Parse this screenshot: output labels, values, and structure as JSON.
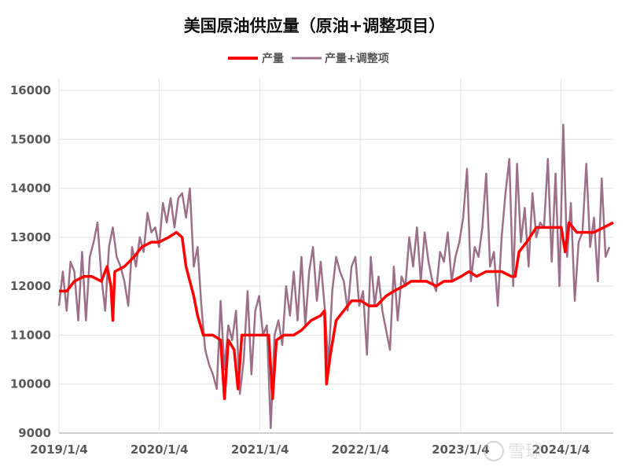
{
  "chart_data": {
    "type": "line",
    "title": "美国原油供应量（原油+调整项目）",
    "xlabel": "",
    "ylabel": "",
    "ylim": [
      9000,
      16000
    ],
    "yticks": [
      9000,
      10000,
      11000,
      12000,
      13000,
      14000,
      15000,
      16000
    ],
    "xticks": [
      "2019/1/4",
      "2020/1/4",
      "2021/1/4",
      "2022/1/4",
      "2023/1/4",
      "2024/1/4"
    ],
    "xrange": [
      "2019-01-04",
      "2024-07-12"
    ],
    "grid": true,
    "legend_position": "top",
    "series": [
      {
        "name": "产量",
        "color": "#ff0000",
        "points": [
          [
            "2019-01-04",
            11900
          ],
          [
            "2019-02-01",
            11900
          ],
          [
            "2019-03-01",
            12100
          ],
          [
            "2019-04-05",
            12200
          ],
          [
            "2019-05-03",
            12200
          ],
          [
            "2019-06-07",
            12100
          ],
          [
            "2019-06-28",
            12400
          ],
          [
            "2019-07-12",
            12000
          ],
          [
            "2019-07-19",
            11300
          ],
          [
            "2019-07-26",
            12300
          ],
          [
            "2019-08-30",
            12400
          ],
          [
            "2019-10-04",
            12600
          ],
          [
            "2019-11-01",
            12800
          ],
          [
            "2019-12-06",
            12900
          ],
          [
            "2020-01-03",
            12900
          ],
          [
            "2020-02-07",
            13000
          ],
          [
            "2020-03-06",
            13100
          ],
          [
            "2020-03-27",
            13000
          ],
          [
            "2020-04-10",
            12400
          ],
          [
            "2020-05-08",
            11800
          ],
          [
            "2020-05-22",
            11400
          ],
          [
            "2020-06-12",
            11000
          ],
          [
            "2020-07-17",
            11000
          ],
          [
            "2020-08-14",
            10900
          ],
          [
            "2020-08-28",
            9700
          ],
          [
            "2020-09-11",
            10900
          ],
          [
            "2020-10-02",
            10700
          ],
          [
            "2020-10-16",
            9900
          ],
          [
            "2020-10-30",
            11000
          ],
          [
            "2020-12-04",
            11000
          ],
          [
            "2021-01-08",
            11000
          ],
          [
            "2021-02-05",
            11000
          ],
          [
            "2021-02-19",
            9700
          ],
          [
            "2021-03-05",
            10900
          ],
          [
            "2021-04-02",
            11000
          ],
          [
            "2021-05-07",
            11000
          ],
          [
            "2021-06-04",
            11100
          ],
          [
            "2021-07-09",
            11300
          ],
          [
            "2021-08-13",
            11400
          ],
          [
            "2021-08-27",
            11500
          ],
          [
            "2021-09-03",
            10000
          ],
          [
            "2021-09-17",
            10600
          ],
          [
            "2021-10-08",
            11300
          ],
          [
            "2021-11-05",
            11500
          ],
          [
            "2021-12-03",
            11700
          ],
          [
            "2022-01-07",
            11700
          ],
          [
            "2022-02-04",
            11600
          ],
          [
            "2022-03-04",
            11600
          ],
          [
            "2022-04-08",
            11800
          ],
          [
            "2022-05-06",
            11900
          ],
          [
            "2022-06-10",
            12000
          ],
          [
            "2022-07-08",
            12100
          ],
          [
            "2022-08-05",
            12100
          ],
          [
            "2022-09-02",
            12100
          ],
          [
            "2022-10-07",
            12000
          ],
          [
            "2022-11-04",
            12100
          ],
          [
            "2022-12-02",
            12100
          ],
          [
            "2023-01-06",
            12200
          ],
          [
            "2023-02-03",
            12300
          ],
          [
            "2023-03-03",
            12200
          ],
          [
            "2023-04-07",
            12300
          ],
          [
            "2023-05-05",
            12300
          ],
          [
            "2023-06-02",
            12300
          ],
          [
            "2023-07-07",
            12200
          ],
          [
            "2023-07-21",
            12200
          ],
          [
            "2023-08-04",
            12700
          ],
          [
            "2023-09-01",
            12900
          ],
          [
            "2023-10-06",
            13200
          ],
          [
            "2023-11-03",
            13200
          ],
          [
            "2023-12-01",
            13200
          ],
          [
            "2024-01-05",
            13200
          ],
          [
            "2024-01-19",
            12700
          ],
          [
            "2024-02-02",
            13300
          ],
          [
            "2024-03-01",
            13100
          ],
          [
            "2024-04-05",
            13100
          ],
          [
            "2024-05-03",
            13100
          ],
          [
            "2024-06-07",
            13200
          ],
          [
            "2024-07-12",
            13300
          ]
        ]
      },
      {
        "name": "产量+调整项",
        "color": "#9b7088",
        "start": "2019-01-04",
        "interval_weeks": 2,
        "values": [
          11600,
          12300,
          11500,
          12500,
          12300,
          11300,
          12700,
          11300,
          12600,
          12900,
          13300,
          12200,
          11500,
          12800,
          13200,
          12600,
          12400,
          12100,
          11600,
          12800,
          12400,
          13000,
          12700,
          13500,
          13100,
          13200,
          12800,
          13700,
          13300,
          13800,
          13200,
          13800,
          13900,
          13400,
          14000,
          12400,
          12800,
          11600,
          10700,
          10400,
          10200,
          9900,
          11700,
          10300,
          11200,
          10900,
          11500,
          9800,
          10500,
          11900,
          10200,
          11500,
          11800,
          11000,
          11200,
          9100,
          11000,
          11300,
          10800,
          12000,
          11400,
          12300,
          11300,
          12600,
          11200,
          12300,
          12800,
          11700,
          12500,
          11600,
          10400,
          11900,
          12600,
          12300,
          12100,
          11500,
          12400,
          12600,
          11600,
          11900,
          10600,
          12600,
          11600,
          12200,
          11500,
          11100,
          10700,
          12400,
          11300,
          12200,
          12000,
          13000,
          12400,
          13200,
          12100,
          13100,
          12500,
          12100,
          11900,
          12700,
          12500,
          13100,
          12100,
          12600,
          12900,
          13400,
          14400,
          12100,
          12800,
          12600,
          13200,
          14300,
          12400,
          12700,
          11600,
          13000,
          13900,
          14600,
          12000,
          14500,
          12900,
          13600,
          12400,
          13900,
          13000,
          13300,
          13200,
          14600,
          12500,
          14300,
          12000,
          15300,
          12600,
          13700,
          11700,
          12900,
          13100,
          14500,
          12800,
          13400,
          12100,
          14200,
          12600,
          12800
        ]
      }
    ]
  },
  "watermark": "雪球"
}
